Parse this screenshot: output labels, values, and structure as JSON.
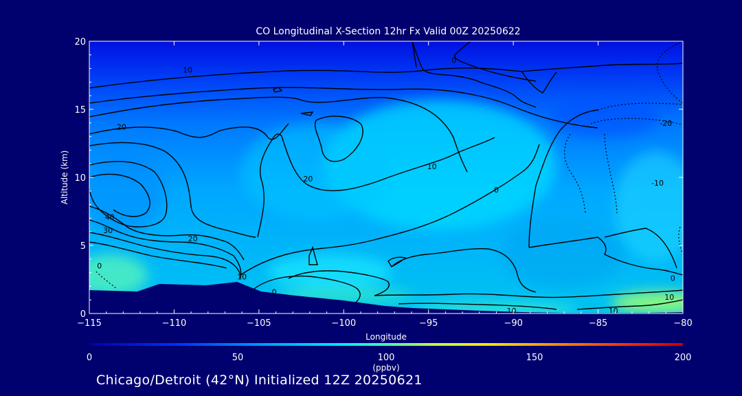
{
  "chart_data": {
    "type": "heatmap",
    "title": "CO Longitudinal X-Section 12hr  Fx Valid 00Z 20250622",
    "xlabel": "Longitude",
    "ylabel": "Altitude (km)",
    "xlim": [
      -115,
      -80
    ],
    "ylim": [
      0,
      20
    ],
    "x_ticks": [
      "−115",
      "−110",
      "−105",
      "−100",
      "−95",
      "−90",
      "−85",
      "−80"
    ],
    "x_tick_values": [
      -115,
      -110,
      -105,
      -100,
      -95,
      -90,
      -85,
      -80
    ],
    "y_ticks": [
      "0",
      "5",
      "10",
      "15",
      "20"
    ],
    "y_tick_values": [
      0,
      5,
      10,
      15,
      20
    ],
    "colorbar": {
      "label": "(ppbv)",
      "range": [
        0,
        200
      ],
      "ticks": [
        "0",
        "50",
        "100",
        "150",
        "200"
      ],
      "tick_values": [
        0,
        50,
        100,
        150,
        200
      ],
      "colors": [
        "#0000aa",
        "#0030ff",
        "#00a0ff",
        "#00e8ff",
        "#40ffb0",
        "#c0ff40",
        "#ffe000",
        "#ff8000",
        "#ff2000",
        "#c00000"
      ]
    },
    "anomaly_contour_labels": [
      {
        "text": "10",
        "lon": -109.2,
        "alt": 17.9
      },
      {
        "text": "0",
        "lon": -93.5,
        "alt": 18.6
      },
      {
        "text": "20",
        "lon": -113.1,
        "alt": 13.7
      },
      {
        "text": "20",
        "lon": -102.1,
        "alt": 9.9
      },
      {
        "text": "10",
        "lon": -94.8,
        "alt": 10.8
      },
      {
        "text": "0",
        "lon": -91.0,
        "alt": 9.1
      },
      {
        "text": "-20",
        "lon": -81.0,
        "alt": 14.0
      },
      {
        "text": "-10",
        "lon": -81.5,
        "alt": 9.6
      },
      {
        "text": "40",
        "lon": -113.8,
        "alt": 7.1
      },
      {
        "text": "30",
        "lon": -113.9,
        "alt": 6.1
      },
      {
        "text": "20",
        "lon": -108.9,
        "alt": 5.5
      },
      {
        "text": "0",
        "lon": -114.4,
        "alt": 3.5
      },
      {
        "text": "10",
        "lon": -106.0,
        "alt": 2.7
      },
      {
        "text": "0",
        "lon": -104.1,
        "alt": 1.6
      },
      {
        "text": "0",
        "lon": -80.6,
        "alt": 2.6
      },
      {
        "text": "10",
        "lon": -80.8,
        "alt": 1.2
      },
      {
        "text": "10",
        "lon": -90.1,
        "alt": 0.2
      },
      {
        "text": "10",
        "lon": -84.1,
        "alt": 0.2
      }
    ]
  },
  "footer": "Chicago/Detroit (42°N) Initialized 12Z 20250621"
}
